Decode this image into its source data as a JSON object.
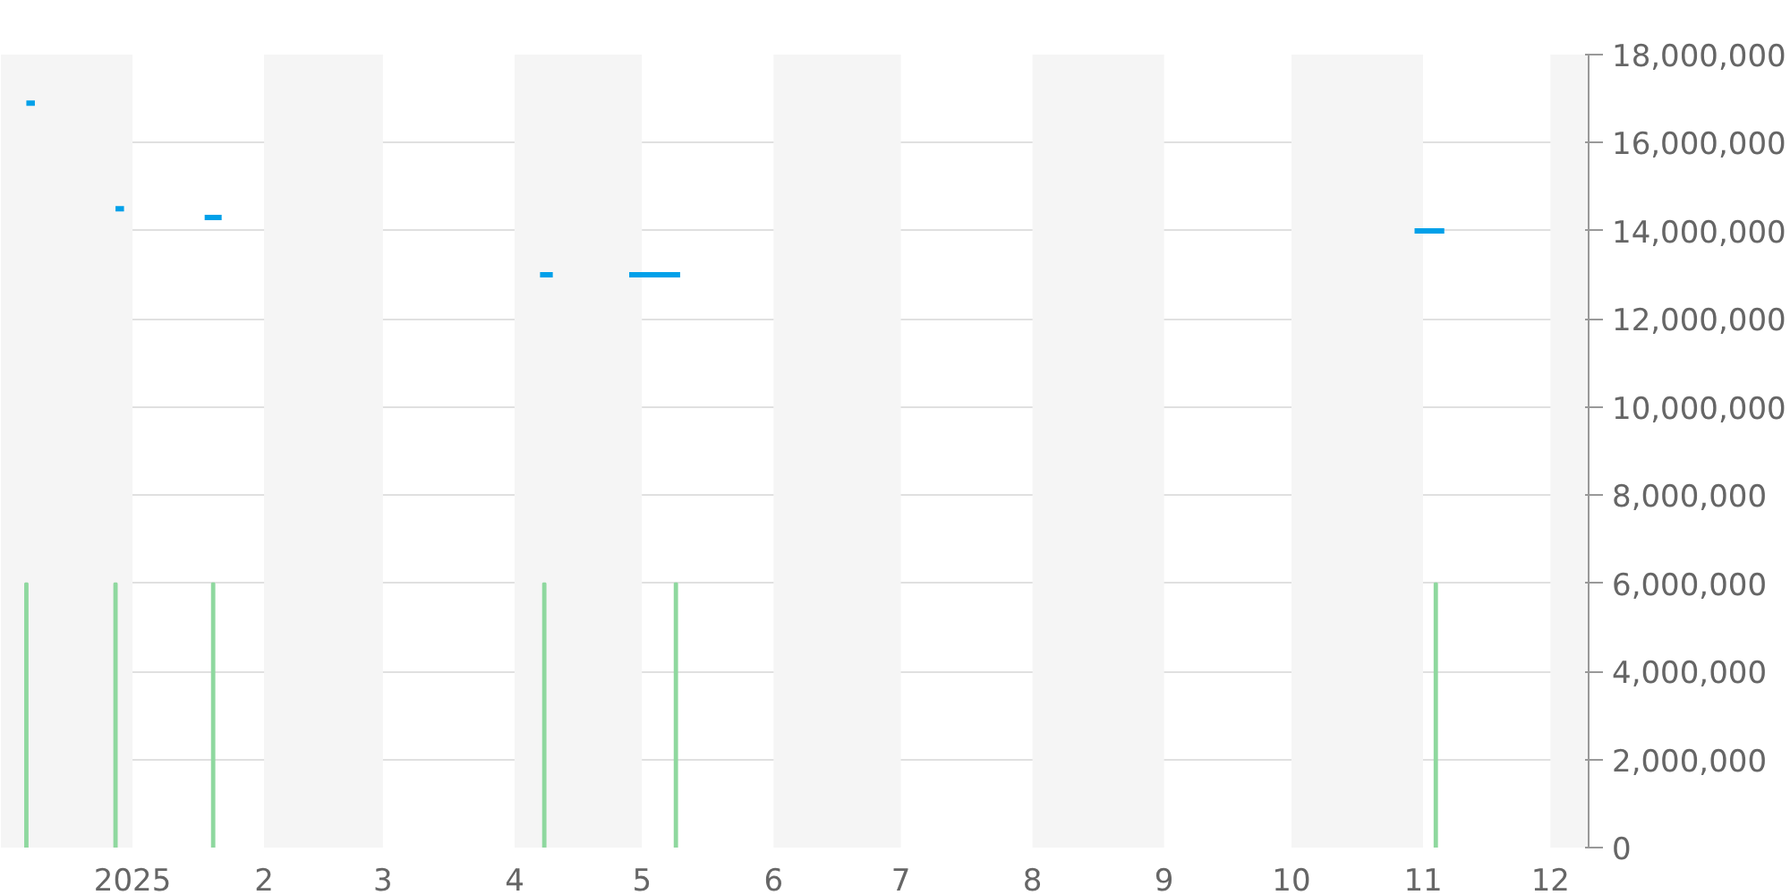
{
  "chart_data": {
    "type": "line",
    "series": [
      {
        "color": "#00a0e9",
        "x": [
          "2024-12-07",
          "2024-12-09",
          null,
          "2024-12-28",
          "2024-12-30",
          null,
          "2025-01-18",
          "2025-01-22",
          null,
          "2025-04-07",
          "2025-04-10",
          null,
          "2025-04-28",
          "2025-05-10",
          null,
          "2025-10-30",
          "2025-11-06"
        ],
        "values": [
          16900000,
          16900000,
          null,
          14500000,
          14500000,
          null,
          14300000,
          14300000,
          null,
          13000000,
          13000000,
          null,
          13000000,
          13000000,
          null,
          14000000,
          14000000
        ]
      },
      {
        "type": "bar",
        "color": "#8fd89f",
        "x": [
          "2024-12-07",
          "2024-12-28",
          "2025-01-20",
          "2025-04-08",
          "2025-05-09",
          "2025-11-04"
        ],
        "values": [
          6000000,
          6000000,
          6000000,
          6000000,
          6000000,
          6000000
        ]
      }
    ],
    "xlim": [
      "2024-12-01",
      "2025-12-10"
    ],
    "xticks": [
      {
        "value": "2025-01-01",
        "label": "2025"
      },
      {
        "value": "2025-02-01",
        "label": "2"
      },
      {
        "value": "2025-03-01",
        "label": "3"
      },
      {
        "value": "2025-04-01",
        "label": "4"
      },
      {
        "value": "2025-05-01",
        "label": "5"
      },
      {
        "value": "2025-06-01",
        "label": "6"
      },
      {
        "value": "2025-07-01",
        "label": "7"
      },
      {
        "value": "2025-08-01",
        "label": "8"
      },
      {
        "value": "2025-09-01",
        "label": "9"
      },
      {
        "value": "2025-10-01",
        "label": "10"
      },
      {
        "value": "2025-11-01",
        "label": "11"
      },
      {
        "value": "2025-12-01",
        "label": "12"
      }
    ],
    "ylim": [
      0,
      18000000
    ],
    "yticks": [
      {
        "value": 0,
        "label": "0"
      },
      {
        "value": 2000000,
        "label": "2,000,000"
      },
      {
        "value": 4000000,
        "label": "4,000,000"
      },
      {
        "value": 6000000,
        "label": "6,000,000"
      },
      {
        "value": 8000000,
        "label": "8,000,000"
      },
      {
        "value": 10000000,
        "label": "10,000,000"
      },
      {
        "value": 12000000,
        "label": "12,000,000"
      },
      {
        "value": 14000000,
        "label": "14,000,000"
      },
      {
        "value": 16000000,
        "label": "16,000,000"
      },
      {
        "value": 18000000,
        "label": "18,000,000"
      }
    ],
    "grid": "y",
    "bands": [
      {
        "axis": "x",
        "from": "2024-12-01",
        "to": "2025-01-01",
        "color": "#f5f5f5"
      },
      {
        "axis": "x",
        "from": "2025-02-01",
        "to": "2025-03-01",
        "color": "#f5f5f5"
      },
      {
        "axis": "x",
        "from": "2025-04-01",
        "to": "2025-05-01",
        "color": "#f5f5f5"
      },
      {
        "axis": "x",
        "from": "2025-06-01",
        "to": "2025-07-01",
        "color": "#f5f5f5"
      },
      {
        "axis": "x",
        "from": "2025-08-01",
        "to": "2025-09-01",
        "color": "#f5f5f5"
      },
      {
        "axis": "x",
        "from": "2025-10-01",
        "to": "2025-11-01",
        "color": "#f5f5f5"
      },
      {
        "axis": "x",
        "from": "2025-12-01",
        "to": "2025-12-10",
        "color": "#f5f5f5"
      }
    ]
  }
}
